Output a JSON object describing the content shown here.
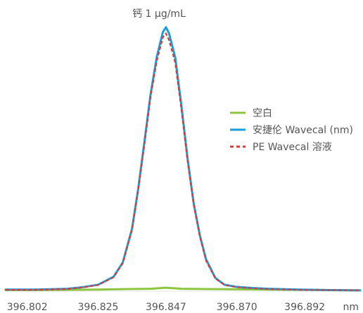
{
  "chart_data": {
    "type": "line",
    "title": "钙 1 μg/mL",
    "xlabel": "nm",
    "ylabel": "",
    "xlim": [
      396.795,
      396.91
    ],
    "ylim": [
      0,
      100
    ],
    "grid": false,
    "legend_position": "right",
    "x_ticks": [
      396.802,
      396.825,
      396.847,
      396.87,
      396.892
    ],
    "x_tick_labels": [
      "396.802",
      "396.825",
      "396.847",
      "396.870",
      "396.892"
    ],
    "series": [
      {
        "name": "空白",
        "color": "#8cc63f",
        "style": "solid",
        "x": [
          396.795,
          396.805,
          396.815,
          396.825,
          396.835,
          396.842,
          396.847,
          396.852,
          396.86,
          396.87,
          396.88,
          396.89,
          396.9,
          396.91
        ],
        "y": [
          0.4,
          0.4,
          0.5,
          0.6,
          0.8,
          0.9,
          1.3,
          0.9,
          0.8,
          0.7,
          0.6,
          0.5,
          0.4,
          0.3
        ]
      },
      {
        "name": "安捷伦 Wavecal (nm)",
        "color": "#1a9fd8",
        "style": "solid",
        "x": [
          396.795,
          396.805,
          396.815,
          396.82,
          396.825,
          396.83,
          396.833,
          396.836,
          396.838,
          396.84,
          396.842,
          396.844,
          396.846,
          396.847,
          396.848,
          396.85,
          396.852,
          396.854,
          396.856,
          396.858,
          396.86,
          396.863,
          396.866,
          396.87,
          396.875,
          396.88,
          396.89,
          396.9,
          396.91
        ],
        "y": [
          0.6,
          0.6,
          0.9,
          1.5,
          2.4,
          5.4,
          10.8,
          23.5,
          38.5,
          56.0,
          74.0,
          88.0,
          97.5,
          99.3,
          97.0,
          88.0,
          70.0,
          50.0,
          33.0,
          21.0,
          12.0,
          5.0,
          2.4,
          1.6,
          1.2,
          0.9,
          0.6,
          0.4,
          0.3
        ]
      },
      {
        "name": "PE Wavecal 溶液",
        "color": "#d93a3a",
        "style": "dashed",
        "x": [
          396.795,
          396.805,
          396.815,
          396.82,
          396.825,
          396.83,
          396.833,
          396.836,
          396.838,
          396.84,
          396.842,
          396.844,
          396.846,
          396.847,
          396.848,
          396.85,
          396.852,
          396.854,
          396.856,
          396.858,
          396.86,
          396.863,
          396.866,
          396.87,
          396.875,
          396.88,
          396.89,
          396.9,
          396.91
        ],
        "y": [
          0.5,
          0.5,
          0.8,
          1.4,
          2.3,
          5.2,
          10.5,
          23.0,
          38.0,
          55.0,
          73.0,
          86.5,
          95.5,
          97.0,
          94.5,
          86.0,
          68.5,
          49.0,
          32.5,
          20.5,
          11.5,
          4.8,
          2.3,
          1.5,
          1.1,
          0.8,
          0.5,
          0.4,
          0.3
        ]
      }
    ]
  }
}
